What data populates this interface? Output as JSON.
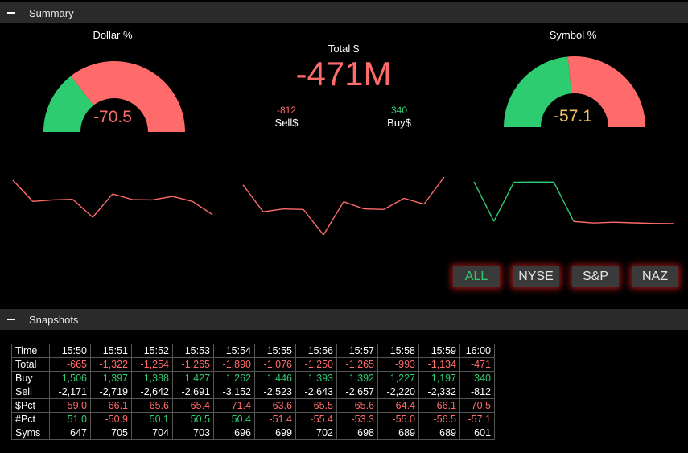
{
  "colors": {
    "red": "#ff6b6b",
    "green": "#2ecc71",
    "yellow": "#f5c26b"
  },
  "summary": {
    "title": "Summary",
    "dollar_gauge": {
      "title": "Dollar %",
      "value": "-70.5",
      "green_fraction": 0.29
    },
    "symbol_gauge": {
      "title": "Symbol %",
      "value": "-57.1",
      "green_fraction": 0.47
    },
    "total": {
      "label": "Total $",
      "value": "-471M"
    },
    "sell": {
      "value": "-812",
      "label": "Sell$"
    },
    "buy": {
      "value": "340",
      "label": "Buy$"
    },
    "sparklines": [
      {
        "name": "dollar",
        "values": [
          -59.0,
          -66.1,
          -65.6,
          -65.4,
          -71.4,
          -63.6,
          -65.5,
          -65.6,
          -64.4,
          -66.1,
          -70.5
        ],
        "colors": [
          "red",
          "red",
          "red",
          "red",
          "red",
          "red",
          "red",
          "red",
          "red",
          "red"
        ]
      },
      {
        "name": "total",
        "values": [
          -665,
          -1322,
          -1254,
          -1265,
          -1890,
          -1076,
          -1250,
          -1265,
          -993,
          -1134,
          -471
        ],
        "colors": [
          "red",
          "red",
          "red",
          "red",
          "red",
          "red",
          "red",
          "red",
          "red",
          "red"
        ]
      },
      {
        "name": "symbol",
        "values": [
          51.0,
          -50.9,
          50.1,
          50.5,
          50.4,
          -51.4,
          -55.4,
          -53.3,
          -55.0,
          -56.5,
          -57.1
        ],
        "colors": [
          "green",
          "green",
          "green",
          "green",
          "green",
          "red",
          "red",
          "red",
          "red",
          "red"
        ]
      }
    ],
    "filters": [
      {
        "label": "ALL",
        "active": true
      },
      {
        "label": "NYSE",
        "active": false
      },
      {
        "label": "S&P",
        "active": false
      },
      {
        "label": "NAZ",
        "active": false
      }
    ]
  },
  "snapshots": {
    "title": "Snapshots",
    "rows": [
      {
        "label": "Time",
        "cells": [
          [
            "15:50",
            "neu"
          ],
          [
            "15:51",
            "neu"
          ],
          [
            "15:52",
            "neu"
          ],
          [
            "15:53",
            "neu"
          ],
          [
            "15:54",
            "neu"
          ],
          [
            "15:55",
            "neu"
          ],
          [
            "15:56",
            "neu"
          ],
          [
            "15:57",
            "neu"
          ],
          [
            "15:58",
            "neu"
          ],
          [
            "15:59",
            "neu"
          ],
          [
            "16:00",
            "neu"
          ]
        ]
      },
      {
        "label": "Total",
        "cells": [
          [
            "-665",
            "neg"
          ],
          [
            "-1,322",
            "neg"
          ],
          [
            "-1,254",
            "neg"
          ],
          [
            "-1,265",
            "neg"
          ],
          [
            "-1,890",
            "neg"
          ],
          [
            "-1,076",
            "neg"
          ],
          [
            "-1,250",
            "neg"
          ],
          [
            "-1,265",
            "neg"
          ],
          [
            "-993",
            "neg"
          ],
          [
            "-1,134",
            "neg"
          ],
          [
            "-471",
            "neg"
          ]
        ]
      },
      {
        "label": "Buy",
        "cells": [
          [
            "1,506",
            "pos"
          ],
          [
            "1,397",
            "pos"
          ],
          [
            "1,388",
            "pos"
          ],
          [
            "1,427",
            "pos"
          ],
          [
            "1,262",
            "pos"
          ],
          [
            "1,446",
            "pos"
          ],
          [
            "1,393",
            "pos"
          ],
          [
            "1,392",
            "pos"
          ],
          [
            "1,227",
            "pos"
          ],
          [
            "1,197",
            "pos"
          ],
          [
            "340",
            "pos"
          ]
        ]
      },
      {
        "label": "Sell",
        "cells": [
          [
            "-2,171",
            "neu"
          ],
          [
            "-2,719",
            "neu"
          ],
          [
            "-2,642",
            "neu"
          ],
          [
            "-2,691",
            "neu"
          ],
          [
            "-3,152",
            "neu"
          ],
          [
            "-2,523",
            "neu"
          ],
          [
            "-2,643",
            "neu"
          ],
          [
            "-2,657",
            "neu"
          ],
          [
            "-2,220",
            "neu"
          ],
          [
            "-2,332",
            "neu"
          ],
          [
            "-812",
            "neu"
          ]
        ]
      },
      {
        "label": "$Pct",
        "cells": [
          [
            "-59.0",
            "neg"
          ],
          [
            "-66.1",
            "neg"
          ],
          [
            "-65.6",
            "neg"
          ],
          [
            "-65.4",
            "neg"
          ],
          [
            "-71.4",
            "neg"
          ],
          [
            "-63.6",
            "neg"
          ],
          [
            "-65.5",
            "neg"
          ],
          [
            "-65.6",
            "neg"
          ],
          [
            "-64.4",
            "neg"
          ],
          [
            "-66.1",
            "neg"
          ],
          [
            "-70.5",
            "neg"
          ]
        ]
      },
      {
        "label": "#Pct",
        "cells": [
          [
            "51.0",
            "pos"
          ],
          [
            "-50.9",
            "neg"
          ],
          [
            "50.1",
            "pos"
          ],
          [
            "50.5",
            "pos"
          ],
          [
            "50.4",
            "pos"
          ],
          [
            "-51.4",
            "neg"
          ],
          [
            "-55.4",
            "neg"
          ],
          [
            "-53.3",
            "neg"
          ],
          [
            "-55.0",
            "neg"
          ],
          [
            "-56.5",
            "neg"
          ],
          [
            "-57.1",
            "neg"
          ]
        ]
      },
      {
        "label": "Syms",
        "cells": [
          [
            "647",
            "neu"
          ],
          [
            "705",
            "neu"
          ],
          [
            "704",
            "neu"
          ],
          [
            "703",
            "neu"
          ],
          [
            "696",
            "neu"
          ],
          [
            "699",
            "neu"
          ],
          [
            "702",
            "neu"
          ],
          [
            "698",
            "neu"
          ],
          [
            "689",
            "neu"
          ],
          [
            "689",
            "neu"
          ],
          [
            "601",
            "neu"
          ]
        ]
      }
    ]
  }
}
